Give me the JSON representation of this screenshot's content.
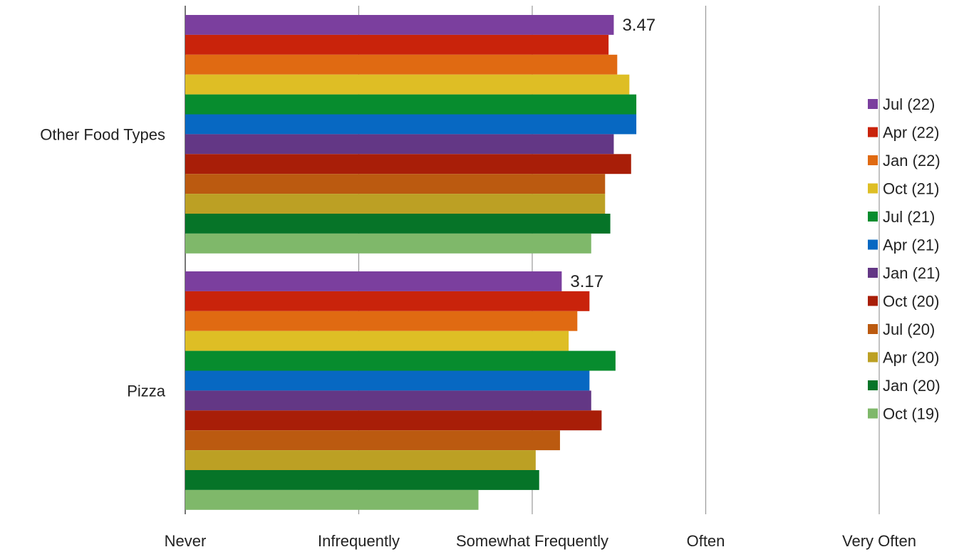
{
  "chart_data": {
    "type": "bar",
    "orientation": "horizontal",
    "categories": [
      "Other Food Types",
      "Pizza"
    ],
    "x_tick_labels": [
      "Never",
      "Infrequently",
      "Somewhat Frequently",
      "Often",
      "Very Often"
    ],
    "xlim": [
      1,
      5
    ],
    "grid": true,
    "legend_position": "right",
    "series": [
      {
        "name": "Jul (22)",
        "color": "#7B3F9E",
        "values": [
          3.47,
          3.17
        ],
        "data_labels": [
          "3.47",
          "3.17"
        ]
      },
      {
        "name": "Apr (22)",
        "color": "#C9230B",
        "values": [
          3.44,
          3.33
        ]
      },
      {
        "name": "Jan (22)",
        "color": "#E06A12",
        "values": [
          3.49,
          3.26
        ]
      },
      {
        "name": "Oct (21)",
        "color": "#DEBE25",
        "values": [
          3.56,
          3.21
        ]
      },
      {
        "name": "Jul (21)",
        "color": "#078C2E",
        "values": [
          3.6,
          3.48
        ]
      },
      {
        "name": "Apr (21)",
        "color": "#0768C2",
        "values": [
          3.6,
          3.33
        ]
      },
      {
        "name": "Jan (21)",
        "color": "#633785",
        "values": [
          3.47,
          3.34
        ]
      },
      {
        "name": "Oct (20)",
        "color": "#A81E08",
        "values": [
          3.57,
          3.4
        ]
      },
      {
        "name": "Jul (20)",
        "color": "#BB5A10",
        "values": [
          3.42,
          3.16
        ]
      },
      {
        "name": "Apr (20)",
        "color": "#BCA024",
        "values": [
          3.42,
          3.02
        ]
      },
      {
        "name": "Jan (20)",
        "color": "#067428",
        "values": [
          3.45,
          3.04
        ]
      },
      {
        "name": "Oct (19)",
        "color": "#7FB86A",
        "values": [
          3.34,
          2.69
        ]
      }
    ]
  }
}
